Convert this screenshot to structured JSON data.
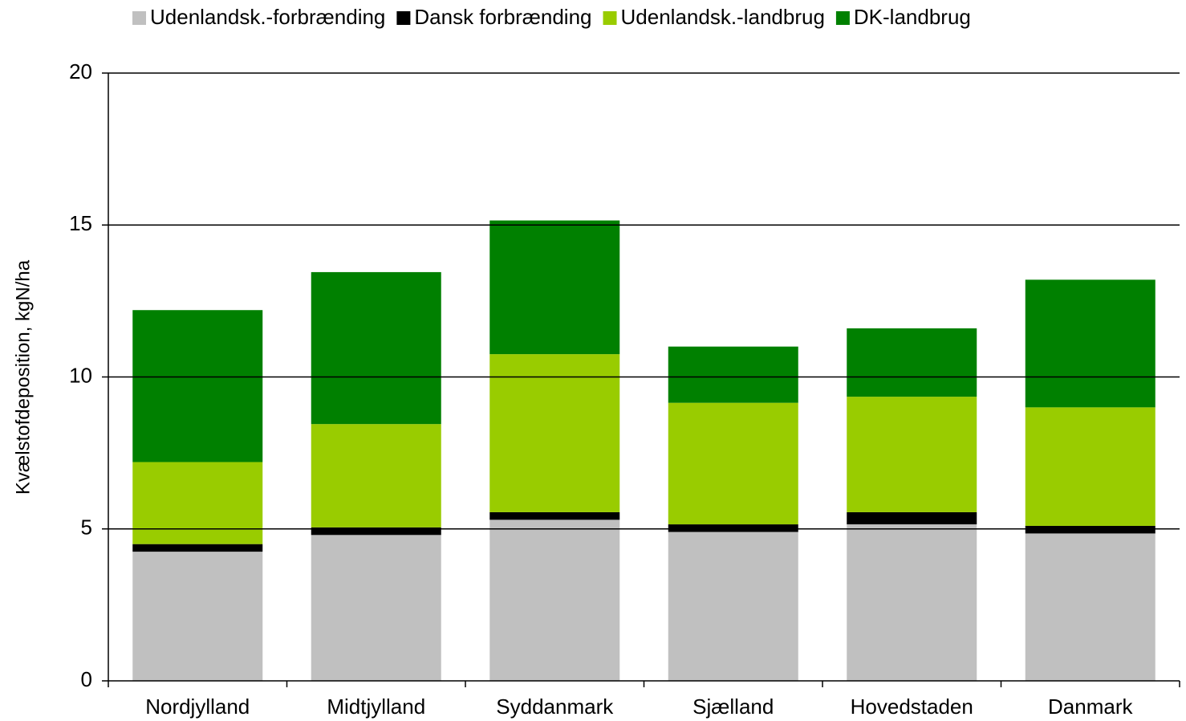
{
  "chart_data": {
    "type": "stacked-bar",
    "categories": [
      "Nordjylland",
      "Midtjylland",
      "Syddanmark",
      "Sjælland",
      "Hovedstaden",
      "Danmark"
    ],
    "series": [
      {
        "name": "Udenlandsk.-forbrænding",
        "color": "#c0c0c0",
        "values": [
          4.25,
          4.8,
          5.3,
          4.9,
          5.15,
          4.85
        ]
      },
      {
        "name": "Dansk forbrænding",
        "color": "#000000",
        "values": [
          0.25,
          0.25,
          0.25,
          0.25,
          0.4,
          0.25
        ]
      },
      {
        "name": "Udenlandsk.-landbrug",
        "color": "#99cc00",
        "values": [
          2.7,
          3.4,
          5.2,
          4.0,
          3.8,
          3.9
        ]
      },
      {
        "name": "DK-landbrug",
        "color": "#008000",
        "values": [
          5.0,
          5.0,
          4.4,
          1.85,
          2.25,
          4.2
        ]
      }
    ],
    "y_label": "Kvælstofdeposition, kgN/ha",
    "ylim": [
      0,
      20
    ],
    "yticks": [
      0,
      5,
      10,
      15,
      20
    ],
    "grid": true,
    "legend": "top"
  }
}
